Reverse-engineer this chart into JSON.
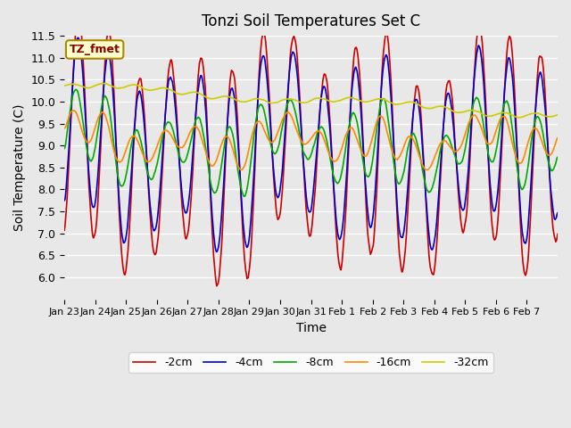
{
  "title": "Tonzi Soil Temperatures Set C",
  "xlabel": "Time",
  "ylabel": "Soil Temperature (C)",
  "ylim": [
    5.5,
    11.5
  ],
  "yticks": [
    6.0,
    6.5,
    7.0,
    7.5,
    8.0,
    8.5,
    9.0,
    9.5,
    10.0,
    10.5,
    11.0,
    11.5
  ],
  "xtick_labels": [
    "Jan 23",
    "Jan 24",
    "Jan 25",
    "Jan 26",
    "Jan 27",
    "Jan 28",
    "Jan 29",
    "Jan 30",
    "Jan 31",
    "Feb 1",
    "Feb 2",
    "Feb 3",
    "Feb 4",
    "Feb 5",
    "Feb 6",
    "Feb 7"
  ],
  "legend_labels": [
    "-2cm",
    "-4cm",
    "-8cm",
    "-16cm",
    "-32cm"
  ],
  "line_colors": [
    "#cc0000",
    "#0000cc",
    "#00aa00",
    "#ff8800",
    "#cccc00"
  ],
  "bg_color": "#e8e8e8",
  "grid_color": "#ffffff",
  "annotation_text": "TZ_fmet",
  "annotation_color": "#880000",
  "annotation_bg": "#ffffcc",
  "annotation_border": "#aa8800",
  "n_days": 16,
  "pts_per_day": 48
}
